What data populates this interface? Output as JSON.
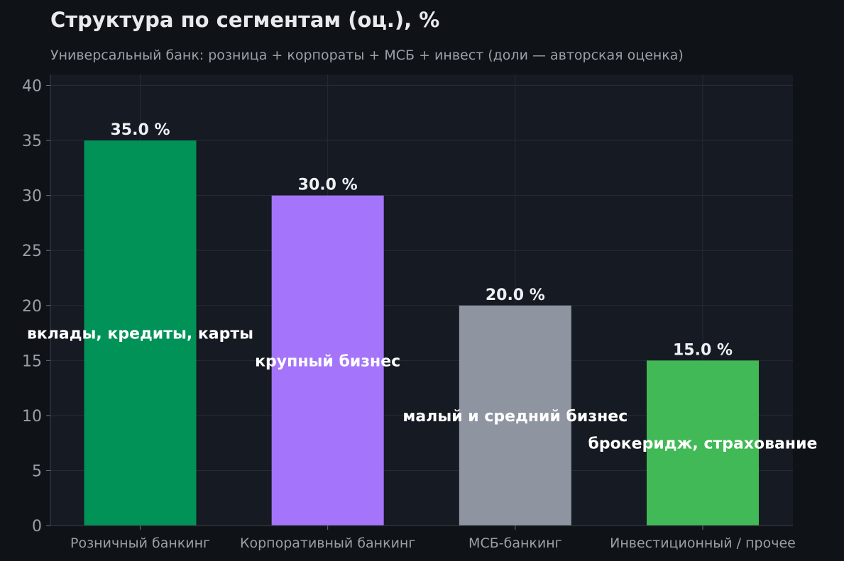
{
  "chart_data": {
    "type": "bar",
    "title": "Структура по сегментам (оц.), %",
    "subtitle": "Универсальный банк: розница + корпораты + МСБ + инвест (доли — авторская оценка)",
    "categories": [
      "Розничный банкинг",
      "Корпоративный банкинг",
      "МСБ-банкинг",
      "Инвестиционный / прочее"
    ],
    "values": [
      35.0,
      30.0,
      20.0,
      15.0
    ],
    "value_labels": [
      "35.0 %",
      "30.0 %",
      "20.0 %",
      "15.0 %"
    ],
    "bar_annotations": [
      "вклады, кредиты, карты",
      "крупный бизнес",
      "малый и средний бизнес",
      "брокеридж, страхование"
    ],
    "colors": [
      "#009257",
      "#a475fa",
      "#8e95a0",
      "#41b956"
    ],
    "ylim": [
      0,
      41
    ],
    "yticks": [
      0,
      5,
      10,
      15,
      20,
      25,
      30,
      35,
      40
    ],
    "grid": true,
    "xlabel": "",
    "ylabel": ""
  }
}
